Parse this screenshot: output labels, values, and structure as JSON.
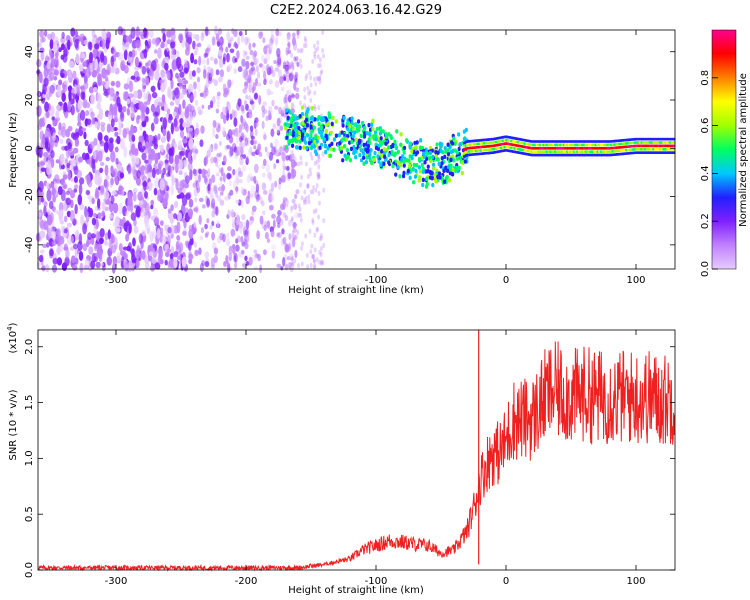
{
  "title": "C2E2.2024.063.16.42.G29",
  "chart_data": [
    {
      "type": "heatmap",
      "xlabel": "Height of straight line (km)",
      "ylabel": "Frequency (Hz)",
      "xlim": [
        -360,
        130
      ],
      "ylim": [
        -50,
        49
      ],
      "x_ticks": [
        -300,
        -200,
        -100,
        0,
        100
      ],
      "y_ticks": [
        -40,
        -20,
        0,
        20,
        40
      ],
      "colorbar": {
        "label": "Normalized spectral amplitude",
        "range": [
          0.0,
          1.0
        ],
        "ticks": [
          0.0,
          0.2,
          0.4,
          0.6,
          0.8
        ],
        "colormap": [
          "#e6ccff",
          "#c080ff",
          "#8020ff",
          "#2020ff",
          "#00c8ff",
          "#00ff60",
          "#a0ff00",
          "#ffff00",
          "#ff8000",
          "#ff0000",
          "#ff0090"
        ]
      },
      "ridge": {
        "x": [
          -170,
          -150,
          -130,
          -110,
          -90,
          -75,
          -60,
          -50,
          -40,
          -30,
          -10,
          0,
          20,
          40,
          60,
          80,
          100,
          130
        ],
        "y": [
          9,
          7,
          5,
          3,
          -1,
          -4,
          -7,
          -7,
          -3,
          0,
          1,
          2,
          0,
          0,
          0,
          0,
          1,
          1
        ]
      },
      "bands": [
        {
          "x_range": [
            -360,
            -240
          ],
          "level": "low",
          "coverage": "dense scatter, full frequency range"
        },
        {
          "x_range": [
            -240,
            -160
          ],
          "level": "low",
          "coverage": "sparse scatter, full frequency range"
        },
        {
          "x_range": [
            -160,
            -30
          ],
          "level": "medium",
          "coverage": "concentrated along ridge"
        },
        {
          "x_range": [
            -30,
            130
          ],
          "level": "high",
          "coverage": "narrow band near 0 Hz"
        }
      ]
    },
    {
      "type": "line",
      "xlabel": "Height of straight line (km)",
      "ylabel": "SNR (10 * v/v)",
      "y_multiplier_label": "(x10",
      "y_multiplier_exp": "4",
      "xlim": [
        -360,
        130
      ],
      "ylim": [
        0,
        2.15
      ],
      "x_ticks": [
        -300,
        -200,
        -100,
        0,
        100
      ],
      "y_ticks": [
        "0.0",
        "0.5",
        "1.0",
        "1.5",
        "2.0"
      ],
      "color": "#ff0000",
      "series": [
        {
          "x": [
            -360,
            -300,
            -200,
            -160,
            -140,
            -120,
            -110,
            -100,
            -90,
            -80,
            -70,
            -60,
            -50,
            -40,
            -30,
            -25,
            -20,
            -15,
            -10,
            -5,
            0,
            5,
            10,
            20,
            30,
            35,
            40,
            50,
            60,
            70,
            80,
            90,
            100,
            110,
            120,
            130
          ],
          "y": [
            0.02,
            0.02,
            0.02,
            0.02,
            0.05,
            0.1,
            0.18,
            0.22,
            0.26,
            0.25,
            0.23,
            0.22,
            0.15,
            0.18,
            0.35,
            0.55,
            0.8,
            0.95,
            1.05,
            1.05,
            1.15,
            1.35,
            1.35,
            1.35,
            1.55,
            1.6,
            1.6,
            1.55,
            1.58,
            1.55,
            1.55,
            1.55,
            1.55,
            1.55,
            1.52,
            1.55
          ]
        }
      ],
      "spike": {
        "x": -21,
        "y": 2.15
      }
    }
  ]
}
